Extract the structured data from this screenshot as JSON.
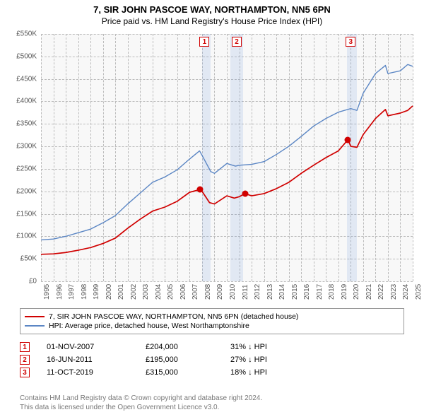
{
  "header": {
    "title": "7, SIR JOHN PASCOE WAY, NORTHAMPTON, NN5 6PN",
    "subtitle": "Price paid vs. HM Land Registry's House Price Index (HPI)"
  },
  "chart": {
    "type": "line",
    "background_color": "#f8f8f8",
    "grid_color": "#bbbbbb",
    "y_axis": {
      "min": 0,
      "max": 550000,
      "step": 50000,
      "labels": [
        "£0",
        "£50K",
        "£100K",
        "£150K",
        "£200K",
        "£250K",
        "£300K",
        "£350K",
        "£400K",
        "£450K",
        "£500K",
        "£550K"
      ],
      "label_color": "#555555",
      "fontsize": 10
    },
    "x_axis": {
      "min": 1995,
      "max": 2025,
      "step": 1,
      "labels": [
        "1995",
        "1996",
        "1997",
        "1998",
        "1999",
        "2000",
        "2001",
        "2002",
        "2003",
        "2004",
        "2005",
        "2006",
        "2007",
        "2008",
        "2009",
        "2010",
        "2011",
        "2012",
        "2013",
        "2014",
        "2015",
        "2016",
        "2017",
        "2018",
        "2019",
        "2020",
        "2021",
        "2022",
        "2023",
        "2024",
        "2025"
      ],
      "label_color": "#555555",
      "fontsize": 10
    },
    "series": [
      {
        "name": "property",
        "label": "7, SIR JOHN PASCOE WAY, NORTHAMPTON, NN5 6PN (detached house)",
        "color": "#d00000",
        "line_width": 1.7,
        "data": [
          [
            1995,
            60000
          ],
          [
            1996,
            61000
          ],
          [
            1997,
            64000
          ],
          [
            1998,
            69000
          ],
          [
            1999,
            75000
          ],
          [
            2000,
            84000
          ],
          [
            2001,
            96000
          ],
          [
            2002,
            118000
          ],
          [
            2003,
            138000
          ],
          [
            2004,
            156000
          ],
          [
            2005,
            165000
          ],
          [
            2006,
            178000
          ],
          [
            2007,
            198000
          ],
          [
            2007.83,
            204000
          ],
          [
            2008,
            200000
          ],
          [
            2008.6,
            175000
          ],
          [
            2009,
            172000
          ],
          [
            2010,
            190000
          ],
          [
            2010.6,
            185000
          ],
          [
            2011,
            188000
          ],
          [
            2011.46,
            195000
          ],
          [
            2012,
            190000
          ],
          [
            2013,
            195000
          ],
          [
            2014,
            206000
          ],
          [
            2015,
            220000
          ],
          [
            2016,
            240000
          ],
          [
            2017,
            258000
          ],
          [
            2018,
            275000
          ],
          [
            2019,
            290000
          ],
          [
            2019.78,
            315000
          ],
          [
            2020,
            300000
          ],
          [
            2020.5,
            298000
          ],
          [
            2021,
            326000
          ],
          [
            2022,
            362000
          ],
          [
            2022.8,
            382000
          ],
          [
            2023,
            368000
          ],
          [
            2024,
            374000
          ],
          [
            2024.6,
            380000
          ],
          [
            2025,
            390000
          ]
        ]
      },
      {
        "name": "hpi",
        "label": "HPI: Average price, detached house, West Northamptonshire",
        "color": "#5b86c4",
        "line_width": 1.4,
        "data": [
          [
            1995,
            92000
          ],
          [
            1996,
            94000
          ],
          [
            1997,
            100000
          ],
          [
            1998,
            108000
          ],
          [
            1999,
            116000
          ],
          [
            2000,
            130000
          ],
          [
            2001,
            146000
          ],
          [
            2002,
            172000
          ],
          [
            2003,
            196000
          ],
          [
            2004,
            220000
          ],
          [
            2005,
            232000
          ],
          [
            2006,
            248000
          ],
          [
            2007,
            272000
          ],
          [
            2007.8,
            290000
          ],
          [
            2008,
            280000
          ],
          [
            2008.7,
            244000
          ],
          [
            2009,
            240000
          ],
          [
            2010,
            262000
          ],
          [
            2010.7,
            256000
          ],
          [
            2011,
            258000
          ],
          [
            2012,
            260000
          ],
          [
            2013,
            266000
          ],
          [
            2014,
            282000
          ],
          [
            2015,
            300000
          ],
          [
            2016,
            322000
          ],
          [
            2017,
            345000
          ],
          [
            2018,
            362000
          ],
          [
            2019,
            376000
          ],
          [
            2020,
            384000
          ],
          [
            2020.5,
            380000
          ],
          [
            2021,
            418000
          ],
          [
            2022,
            462000
          ],
          [
            2022.8,
            480000
          ],
          [
            2023,
            462000
          ],
          [
            2024,
            468000
          ],
          [
            2024.6,
            482000
          ],
          [
            2025,
            478000
          ]
        ]
      }
    ],
    "shaded_bands": [
      {
        "x_start": 2008,
        "x_end": 2008.7,
        "color": "rgba(120,160,220,0.18)"
      },
      {
        "x_start": 2010.3,
        "x_end": 2011.3,
        "color": "rgba(120,160,220,0.18)"
      },
      {
        "x_start": 2019.7,
        "x_end": 2020.5,
        "color": "rgba(120,160,220,0.18)"
      }
    ],
    "chart_markers": [
      {
        "n": "1",
        "x": 2008.2,
        "color": "#d00000"
      },
      {
        "n": "2",
        "x": 2010.8,
        "color": "#d00000"
      },
      {
        "n": "3",
        "x": 2020.0,
        "color": "#d00000"
      }
    ],
    "sale_points": [
      {
        "x": 2007.83,
        "y": 204000,
        "color": "#d00000"
      },
      {
        "x": 2011.46,
        "y": 195000,
        "color": "#d00000"
      },
      {
        "x": 2019.78,
        "y": 315000,
        "color": "#d00000"
      }
    ]
  },
  "legend": {
    "border_color": "#999999",
    "items": [
      {
        "color": "#d00000",
        "text": "7, SIR JOHN PASCOE WAY, NORTHAMPTON, NN5 6PN (detached house)"
      },
      {
        "color": "#5b86c4",
        "text": "HPI: Average price, detached house, West Northamptonshire"
      }
    ]
  },
  "sales": [
    {
      "n": "1",
      "date": "01-NOV-2007",
      "price": "£204,000",
      "pct": "31% ↓ HPI"
    },
    {
      "n": "2",
      "date": "16-JUN-2011",
      "price": "£195,000",
      "pct": "27% ↓ HPI"
    },
    {
      "n": "3",
      "date": "11-OCT-2019",
      "price": "£315,000",
      "pct": "18% ↓ HPI"
    }
  ],
  "footer": {
    "line1": "Contains HM Land Registry data © Crown copyright and database right 2024.",
    "line2": "This data is licensed under the Open Government Licence v3.0."
  }
}
